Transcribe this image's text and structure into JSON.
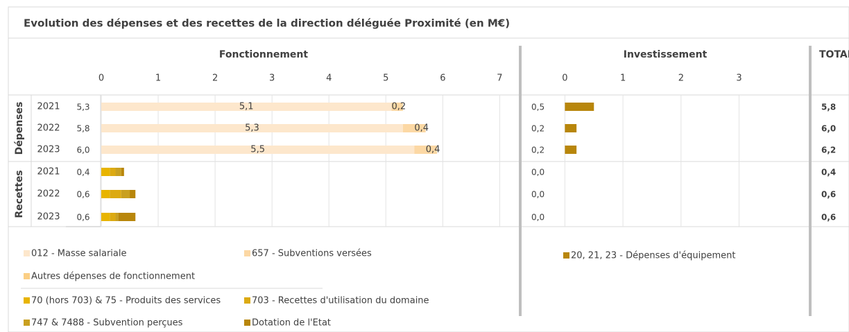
{
  "chart_data": {
    "type": "bar",
    "title": "Evolution des dépenses et des recettes de la direction déléguée Proximité (en M€)",
    "groups": [
      "Dépenses",
      "Recettes"
    ],
    "categories": [
      "2021",
      "2022",
      "2023",
      "2021",
      "2022",
      "2023"
    ],
    "panels": [
      {
        "title": "Fonctionnement",
        "xlim": [
          0,
          7.3
        ],
        "xticks": [
          0,
          1,
          2,
          3,
          4,
          5,
          6,
          7
        ],
        "totals": [
          5.3,
          5.8,
          6.0,
          0.4,
          0.6,
          0.6
        ],
        "totals_labels": [
          "5,3",
          "5,8",
          "6,0",
          "0,4",
          "0,6",
          "0,6"
        ],
        "series": [
          {
            "name": "012 - Masse salariale",
            "color": "#fde7cc",
            "values": [
              5.1,
              5.3,
              5.5,
              null,
              null,
              null
            ],
            "value_labels": [
              "5,1",
              "5,3",
              "5,5",
              null,
              null,
              null
            ]
          },
          {
            "name": "657 - Subventions versées",
            "color": "#fcd8a4",
            "values": [
              0.2,
              0.4,
              0.4,
              null,
              null,
              null
            ],
            "value_labels": [
              "0,2",
              "0,4",
              "0,4",
              null,
              null,
              null
            ]
          },
          {
            "name": "Autres dépenses de fonctionnement",
            "color": "#fbcf85",
            "values": [
              null,
              null,
              null,
              null,
              null,
              null
            ]
          },
          {
            "name": "70 (hors 703) & 75 - Produits des services",
            "color": "#e8b400",
            "values": [
              null,
              null,
              null,
              0.15,
              0.15,
              0.15
            ]
          },
          {
            "name": "703 - Recettes d'utilisation du domaine",
            "color": "#dcaa12",
            "values": [
              null,
              null,
              null,
              0.1,
              0.2,
              0.1
            ]
          },
          {
            "name": "747 & 7488 - Subvention perçues",
            "color": "#c9a020",
            "values": [
              null,
              null,
              null,
              0.1,
              0.15,
              0.05
            ]
          },
          {
            "name": "Dotation de l'Etat",
            "color": "#b8860b",
            "values": [
              null,
              null,
              null,
              0.05,
              0.1,
              0.3
            ]
          }
        ]
      },
      {
        "title": "Investissement",
        "xlim": [
          -0.65,
          4.2
        ],
        "xticks": [
          0,
          1,
          2,
          3
        ],
        "series": [
          {
            "name": "20, 21, 23 - Dépenses d'équipement",
            "color": "#b8860b",
            "values": [
              0.5,
              0.2,
              0.2,
              0.0,
              0.0,
              0.0
            ],
            "value_labels": [
              "0,5",
              "0,2",
              "0,2",
              "0,0",
              "0,0",
              "0,0"
            ]
          }
        ]
      }
    ],
    "total_title": "TOTAL",
    "total": [
      5.8,
      6.0,
      6.2,
      0.4,
      0.6,
      0.6
    ],
    "total_labels": [
      "5,8",
      "6,0",
      "6,2",
      "0,4",
      "0,6",
      "0,6"
    ]
  }
}
